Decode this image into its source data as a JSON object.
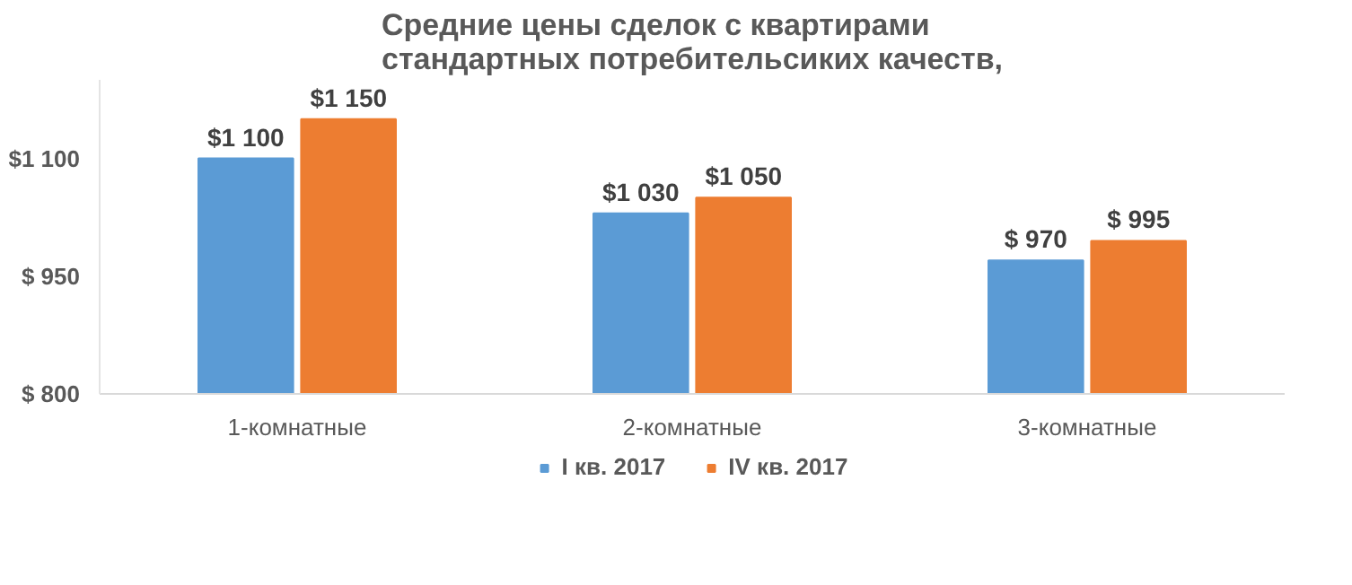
{
  "chart_data": {
    "type": "bar",
    "title": "Средние цены сделок с квартирами\nстандартных потребительсиких качеств,",
    "categories": [
      "1-комнатные",
      "2-комнатные",
      "3-комнатные"
    ],
    "series": [
      {
        "name": "I кв. 2017",
        "color": "#5b9bd5",
        "values": [
          1100,
          1030,
          970
        ],
        "value_labels": [
          "$1 100",
          "$1 030",
          "$ 970"
        ]
      },
      {
        "name": "IV кв. 2017",
        "color": "#ed7d31",
        "values": [
          1150,
          1050,
          995
        ],
        "value_labels": [
          "$1 150",
          "$1 050",
          "$ 995"
        ]
      }
    ],
    "ylim": [
      800,
      1200
    ],
    "yticks": [
      {
        "value": 800,
        "label": "$ 800"
      },
      {
        "value": 950,
        "label": "$ 950"
      },
      {
        "value": 1100,
        "label": "$1 100"
      }
    ],
    "grid": false,
    "legend": "bottom"
  }
}
